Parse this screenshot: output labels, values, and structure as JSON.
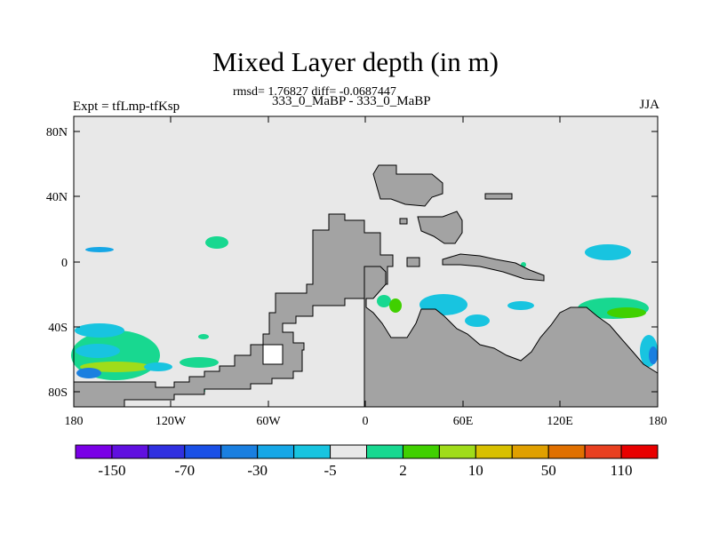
{
  "title": "Mixed Layer depth (in m)",
  "stats": "rmsd= 1.76827  diff= -0.0687447",
  "subtitle": "333_0_MaBP - 333_0_MaBP",
  "left_label": "Expt = tfLmp-tfKsp",
  "right_label": "JJA",
  "lat_labels": [
    "80N",
    "40N",
    "0",
    "40S",
    "80S"
  ],
  "lon_labels": [
    "180",
    "120W",
    "60W",
    "0",
    "60E",
    "120E",
    "180"
  ],
  "colorbar": {
    "labels": [
      "-150",
      "-70",
      "-30",
      "-5",
      "2",
      "10",
      "50",
      "110"
    ],
    "colors": [
      "#7a00e6",
      "#6010e0",
      "#3030e0",
      "#1a50e6",
      "#1a7fe0",
      "#16a7e6",
      "#18c4e0",
      "#e8e8e8",
      "#18d890",
      "#40d000",
      "#a0dc1a",
      "#d8c000",
      "#e0a000",
      "#e07000",
      "#e84020",
      "#e80000"
    ]
  },
  "colors": {
    "ocean": "#e8e8e8",
    "land": "#a3a3a3",
    "cyan": "#18c4e0",
    "light_blue": "#16a7e6",
    "green": "#18d890",
    "bright_green": "#40d000",
    "yellow_green": "#a0dc1a"
  }
}
